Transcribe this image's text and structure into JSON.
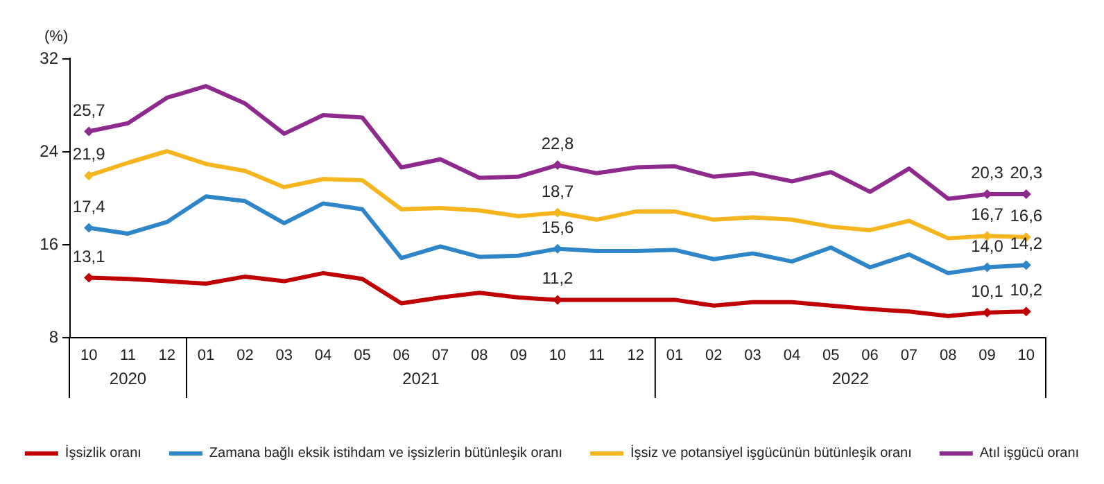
{
  "chart_data": {
    "type": "line",
    "ylabel": "(%)",
    "categories": [
      "10",
      "11",
      "12",
      "01",
      "02",
      "03",
      "04",
      "05",
      "06",
      "07",
      "08",
      "09",
      "10",
      "11",
      "12",
      "01",
      "02",
      "03",
      "04",
      "05",
      "06",
      "07",
      "08",
      "09",
      "10"
    ],
    "annotations": [
      "2020",
      "2021",
      "2022"
    ],
    "ylim": [
      8,
      32
    ],
    "yticks": [
      8,
      16,
      24,
      32
    ],
    "grid": false,
    "legend": "bottom",
    "line_style": "solid",
    "series": [
      {
        "name": "İşsizlik oranı",
        "color": "#c00000",
        "values": [
          13.1,
          13.0,
          12.8,
          12.6,
          13.2,
          12.8,
          13.5,
          13.0,
          10.9,
          11.4,
          11.8,
          11.4,
          11.2,
          11.2,
          11.2,
          11.2,
          10.7,
          11.0,
          11.0,
          10.7,
          10.4,
          10.2,
          9.8,
          10.1,
          10.2
        ],
        "value_labels": [
          "13,1",
          null,
          null,
          null,
          null,
          null,
          null,
          null,
          null,
          null,
          null,
          null,
          "11,2",
          null,
          null,
          null,
          null,
          null,
          null,
          null,
          null,
          null,
          null,
          "10,1",
          "10,2"
        ]
      },
      {
        "name": "Zamana bağlı eksik istihdam ve işsizlerin bütünleşik oranı",
        "color": "#2e86c8",
        "values": [
          17.4,
          16.9,
          17.9,
          20.1,
          19.7,
          17.8,
          19.5,
          19.0,
          14.8,
          15.8,
          14.9,
          15.0,
          15.6,
          15.4,
          15.4,
          15.5,
          14.7,
          15.2,
          14.5,
          15.7,
          14.0,
          15.1,
          13.5,
          14.0,
          14.2
        ],
        "value_labels": [
          "17,4",
          null,
          null,
          null,
          null,
          null,
          null,
          null,
          null,
          null,
          null,
          null,
          "15,6",
          null,
          null,
          null,
          null,
          null,
          null,
          null,
          null,
          null,
          null,
          "14,0",
          "14,2"
        ]
      },
      {
        "name": "İşsiz ve potansiyel işgücünün bütünleşik oranı",
        "color": "#f5b51f",
        "values": [
          21.9,
          23.0,
          24.0,
          22.9,
          22.3,
          20.9,
          21.6,
          21.5,
          19.0,
          19.1,
          18.9,
          18.4,
          18.7,
          18.1,
          18.8,
          18.8,
          18.1,
          18.3,
          18.1,
          17.5,
          17.2,
          18.0,
          16.5,
          16.7,
          16.6
        ],
        "value_labels": [
          "21,9",
          null,
          null,
          null,
          null,
          null,
          null,
          null,
          null,
          null,
          null,
          null,
          "18,7",
          null,
          null,
          null,
          null,
          null,
          null,
          null,
          null,
          null,
          null,
          "16,7",
          "16,6"
        ]
      },
      {
        "name": "Atıl işgücü oranı",
        "color": "#8e2a8e",
        "values": [
          25.7,
          26.4,
          28.6,
          29.6,
          28.1,
          25.5,
          27.1,
          26.9,
          22.6,
          23.3,
          21.7,
          21.8,
          22.8,
          22.1,
          22.6,
          22.7,
          21.8,
          22.1,
          21.4,
          22.2,
          20.5,
          22.5,
          19.9,
          20.3,
          20.3
        ],
        "value_labels": [
          "25,7",
          null,
          null,
          null,
          null,
          null,
          null,
          null,
          null,
          null,
          null,
          null,
          "22,8",
          null,
          null,
          null,
          null,
          null,
          null,
          null,
          null,
          null,
          null,
          "20,3",
          "20,3"
        ]
      }
    ]
  }
}
